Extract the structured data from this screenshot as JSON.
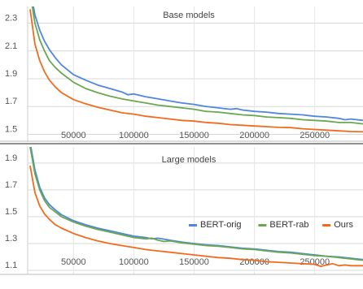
{
  "chart_data": [
    {
      "type": "line",
      "title": "Base models",
      "xlabel": "",
      "ylabel": "",
      "xlim": [
        12000,
        290000
      ],
      "ylim": [
        1.45,
        2.42
      ],
      "x_ticks": [
        50000,
        100000,
        150000,
        200000,
        250000
      ],
      "y_ticks": [
        1.5,
        1.7,
        1.9,
        2.1,
        2.3
      ],
      "grid": true,
      "legend": "none",
      "series": [
        {
          "name": "BERT-orig",
          "color": "#4f86e0",
          "x": [
            14000,
            18000,
            22000,
            26000,
            30000,
            35000,
            40000,
            50000,
            60000,
            70000,
            80000,
            90000,
            95000,
            100000,
            110000,
            120000,
            130000,
            140000,
            150000,
            160000,
            170000,
            180000,
            185000,
            190000,
            200000,
            210000,
            220000,
            230000,
            240000,
            250000,
            260000,
            270000,
            275000,
            280000,
            290000
          ],
          "y": [
            2.55,
            2.36,
            2.25,
            2.17,
            2.11,
            2.05,
            2.0,
            1.93,
            1.89,
            1.855,
            1.83,
            1.805,
            1.785,
            1.79,
            1.77,
            1.755,
            1.74,
            1.725,
            1.715,
            1.7,
            1.69,
            1.68,
            1.685,
            1.675,
            1.665,
            1.66,
            1.65,
            1.645,
            1.64,
            1.63,
            1.625,
            1.615,
            1.605,
            1.61,
            1.6
          ]
        },
        {
          "name": "BERT-rab",
          "color": "#6aa84f",
          "x": [
            14000,
            18000,
            22000,
            26000,
            30000,
            35000,
            40000,
            50000,
            60000,
            70000,
            80000,
            90000,
            100000,
            110000,
            120000,
            130000,
            140000,
            150000,
            160000,
            170000,
            180000,
            190000,
            200000,
            210000,
            220000,
            230000,
            240000,
            250000,
            260000,
            270000,
            280000,
            290000
          ],
          "y": [
            2.52,
            2.3,
            2.18,
            2.1,
            2.03,
            1.98,
            1.94,
            1.875,
            1.83,
            1.8,
            1.775,
            1.755,
            1.74,
            1.725,
            1.71,
            1.7,
            1.69,
            1.68,
            1.665,
            1.66,
            1.65,
            1.64,
            1.635,
            1.625,
            1.62,
            1.615,
            1.605,
            1.6,
            1.595,
            1.585,
            1.585,
            1.575
          ]
        },
        {
          "name": "Ours",
          "color": "#f26b1d",
          "x": [
            14000,
            18000,
            22000,
            26000,
            30000,
            35000,
            40000,
            50000,
            60000,
            70000,
            80000,
            90000,
            100000,
            110000,
            120000,
            130000,
            140000,
            150000,
            160000,
            170000,
            180000,
            190000,
            200000,
            210000,
            220000,
            230000,
            240000,
            250000,
            260000,
            270000,
            280000,
            290000
          ],
          "y": [
            2.4,
            2.15,
            2.03,
            1.95,
            1.89,
            1.84,
            1.8,
            1.75,
            1.72,
            1.695,
            1.675,
            1.655,
            1.645,
            1.63,
            1.62,
            1.61,
            1.6,
            1.595,
            1.585,
            1.58,
            1.57,
            1.565,
            1.56,
            1.555,
            1.55,
            1.548,
            1.54,
            1.535,
            1.53,
            1.525,
            1.52,
            1.518
          ]
        }
      ]
    },
    {
      "type": "line",
      "title": "Large models",
      "xlabel": "",
      "ylabel": "",
      "xlim": [
        12000,
        290000
      ],
      "ylim": [
        1.07,
        2.02
      ],
      "x_ticks": [
        50000,
        100000,
        150000,
        200000,
        250000
      ],
      "y_ticks": [
        1.1,
        1.3,
        1.5,
        1.7,
        1.9
      ],
      "grid": true,
      "legend": "lower-right",
      "series": [
        {
          "name": "BERT-orig",
          "color": "#4f86e0",
          "x": [
            14000,
            18000,
            22000,
            26000,
            30000,
            35000,
            40000,
            50000,
            60000,
            70000,
            80000,
            90000,
            100000,
            110000,
            115000,
            120000,
            130000,
            140000,
            150000,
            160000,
            170000,
            180000,
            190000,
            200000,
            210000,
            220000,
            230000,
            240000,
            250000,
            260000,
            270000,
            280000,
            290000
          ],
          "y": [
            2.05,
            1.85,
            1.72,
            1.64,
            1.59,
            1.55,
            1.515,
            1.47,
            1.44,
            1.415,
            1.395,
            1.375,
            1.355,
            1.345,
            1.335,
            1.34,
            1.325,
            1.31,
            1.3,
            1.29,
            1.285,
            1.275,
            1.265,
            1.26,
            1.25,
            1.24,
            1.235,
            1.225,
            1.215,
            1.205,
            1.2,
            1.19,
            1.18
          ]
        },
        {
          "name": "BERT-rab",
          "color": "#6aa84f",
          "x": [
            14000,
            18000,
            22000,
            26000,
            30000,
            35000,
            40000,
            50000,
            60000,
            70000,
            80000,
            90000,
            100000,
            110000,
            115000,
            120000,
            125000,
            130000,
            140000,
            150000,
            160000,
            170000,
            180000,
            190000,
            200000,
            210000,
            220000,
            230000,
            240000,
            250000,
            260000,
            270000,
            280000,
            290000
          ],
          "y": [
            2.02,
            1.82,
            1.7,
            1.62,
            1.57,
            1.535,
            1.5,
            1.46,
            1.43,
            1.405,
            1.385,
            1.365,
            1.345,
            1.335,
            1.34,
            1.325,
            1.315,
            1.32,
            1.305,
            1.295,
            1.285,
            1.28,
            1.27,
            1.26,
            1.255,
            1.245,
            1.235,
            1.23,
            1.22,
            1.21,
            1.205,
            1.195,
            1.185,
            1.175
          ]
        },
        {
          "name": "Ours",
          "color": "#f26b1d",
          "x": [
            14000,
            18000,
            22000,
            26000,
            30000,
            35000,
            40000,
            50000,
            60000,
            70000,
            80000,
            90000,
            100000,
            110000,
            120000,
            130000,
            140000,
            150000,
            160000,
            170000,
            180000,
            190000,
            200000,
            210000,
            220000,
            230000,
            240000,
            250000,
            255000,
            260000,
            265000,
            270000,
            275000,
            280000,
            290000
          ],
          "y": [
            1.88,
            1.68,
            1.58,
            1.52,
            1.48,
            1.44,
            1.415,
            1.375,
            1.345,
            1.32,
            1.3,
            1.285,
            1.27,
            1.255,
            1.245,
            1.235,
            1.225,
            1.215,
            1.205,
            1.195,
            1.19,
            1.18,
            1.175,
            1.165,
            1.16,
            1.155,
            1.15,
            1.145,
            1.13,
            1.14,
            1.15,
            1.135,
            1.14,
            1.135,
            1.135
          ]
        }
      ]
    }
  ]
}
